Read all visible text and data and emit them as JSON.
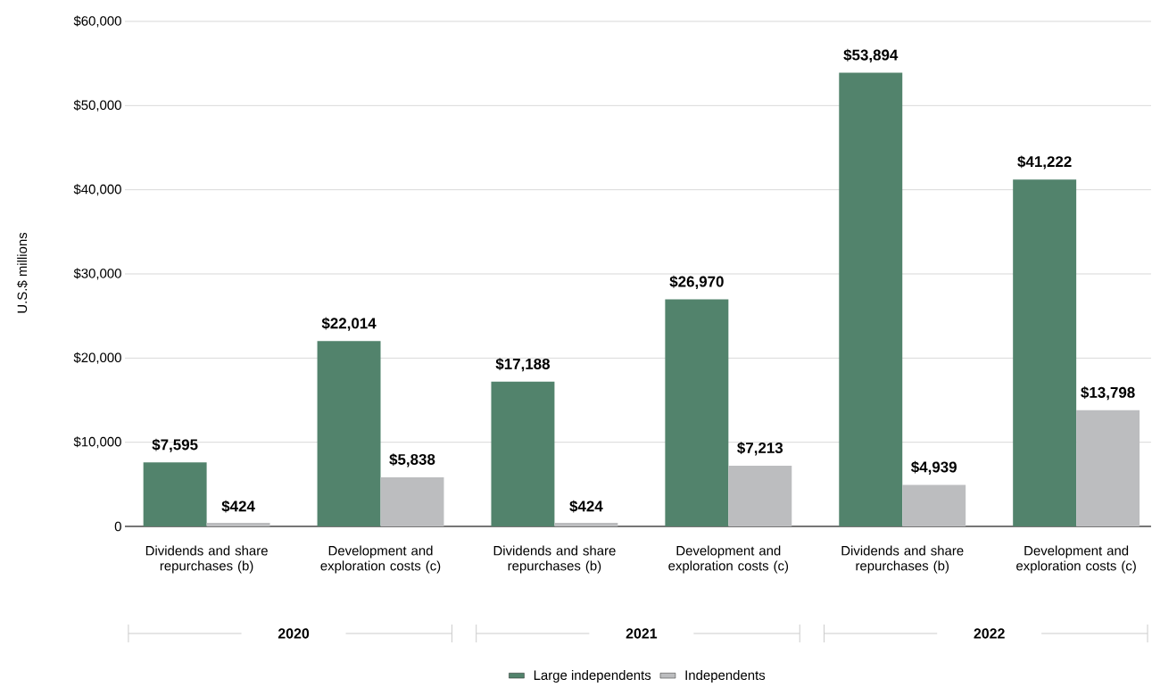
{
  "chart_data": {
    "type": "bar",
    "categories": [
      "Dividends and share repurchases (b)",
      "Development and exploration costs (c)",
      "Dividends and share repurchases (b)",
      "Development and exploration costs (c)",
      "Dividends and share repurchases (b)",
      "Development and exploration costs (c)"
    ],
    "series": [
      {
        "name": "Large independents",
        "color": "#52836c",
        "values": [
          7595,
          22014,
          17188,
          26970,
          53894,
          41222
        ],
        "value_labels": [
          "$7,595",
          "$22,014",
          "$17,188",
          "$26,970",
          "$53,894",
          "$41,222"
        ]
      },
      {
        "name": "Independents",
        "color": "#bcbdbf",
        "values": [
          424,
          5838,
          424,
          7213,
          4939,
          13798
        ],
        "value_labels": [
          "$424",
          "$5,838",
          "$424",
          "$7,213",
          "$4,939",
          "$13,798"
        ]
      }
    ],
    "ylabel": "U.S.$ millions",
    "ylim": [
      0,
      60000
    ],
    "yticks": [
      0,
      {
        "value": 10000,
        "label": "$10,000"
      },
      {
        "value": 20000,
        "label": "$20,000"
      },
      {
        "value": 30000,
        "label": "$30,000"
      },
      {
        "value": 40000,
        "label": "$40,000"
      },
      {
        "value": 50000,
        "label": "$50,000"
      },
      {
        "value": 60000,
        "label": "$60,000"
      }
    ],
    "grid": "y",
    "legend": "bottom",
    "annotations": [
      "2020",
      "2021",
      "2022"
    ]
  }
}
